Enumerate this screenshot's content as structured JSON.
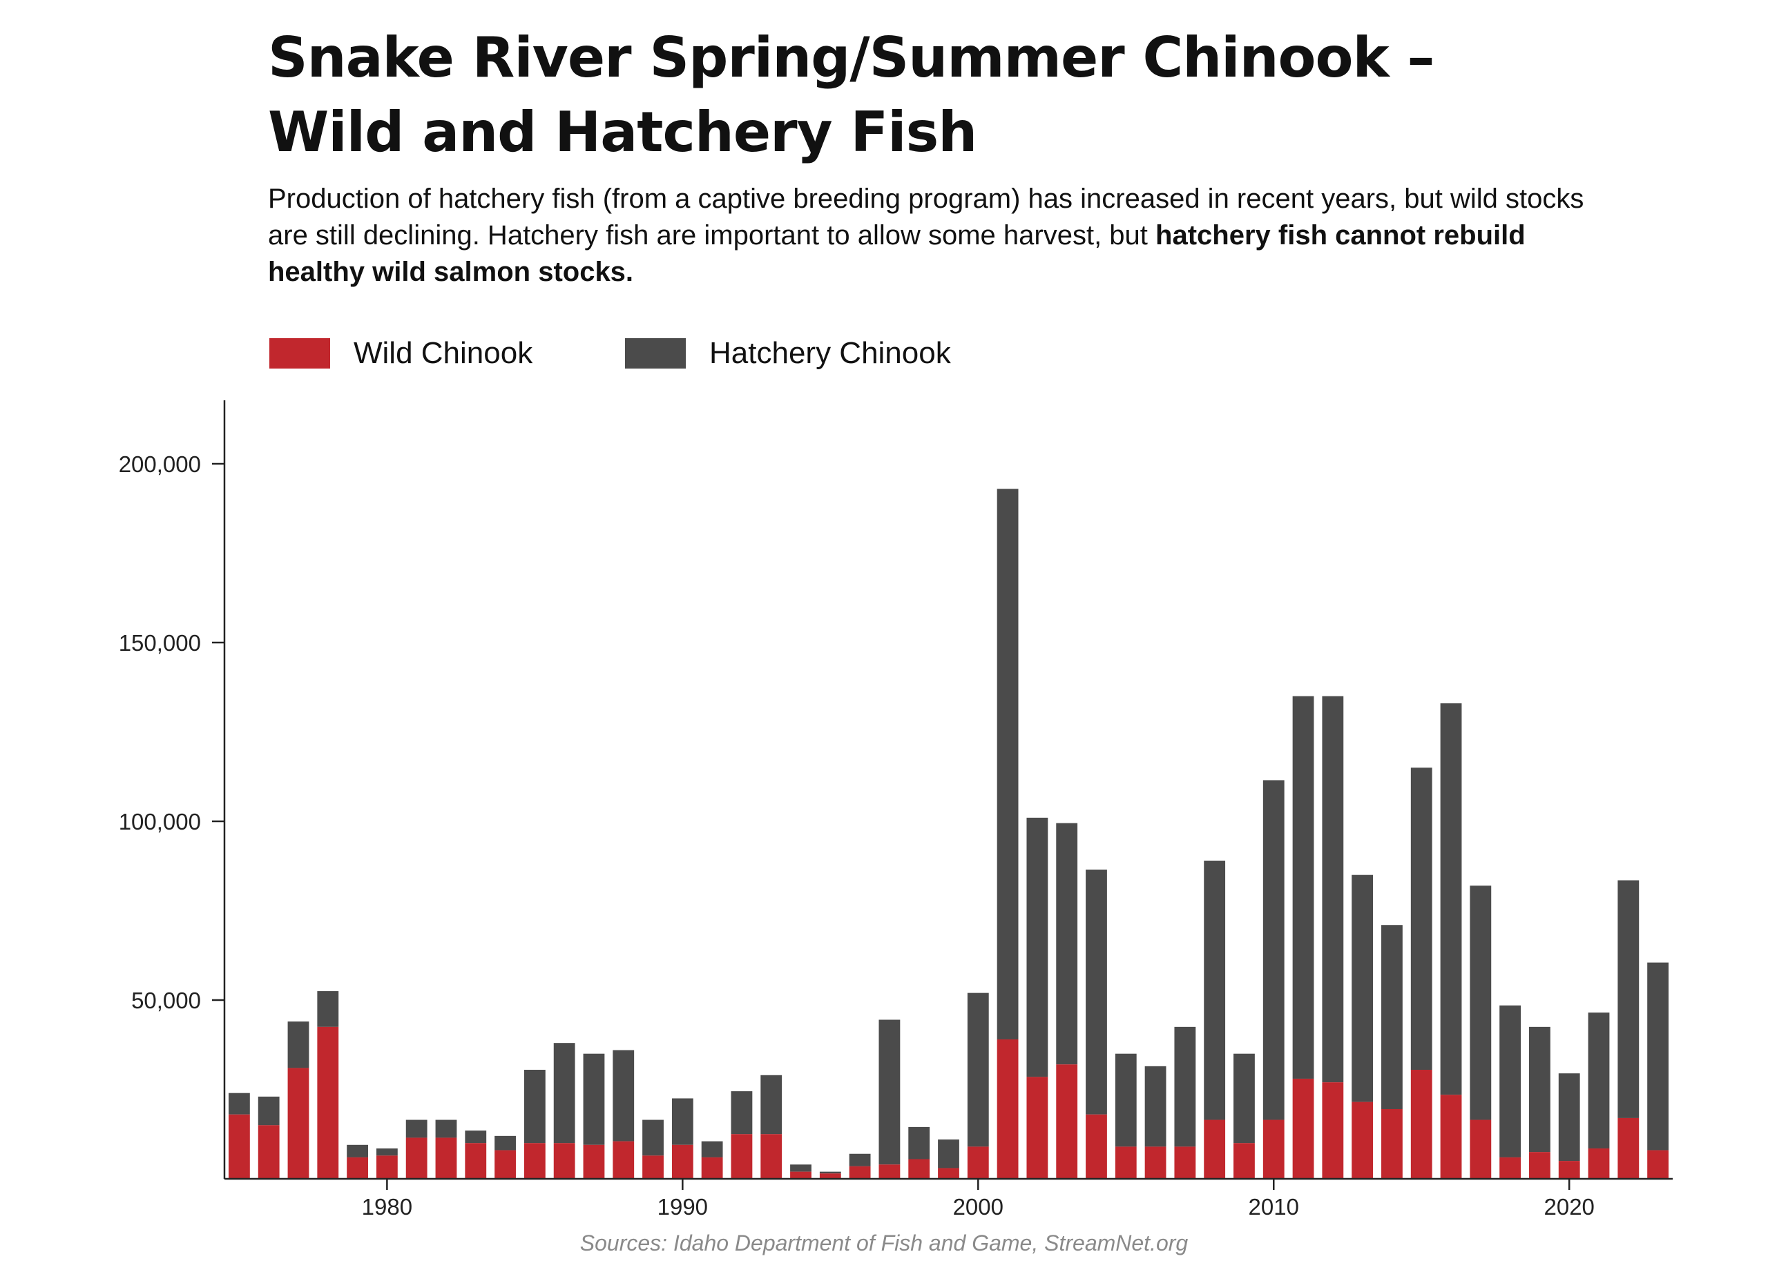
{
  "title_line1": "Snake River Spring/Summer Chinook –",
  "title_line2": "Wild and Hatchery Fish",
  "subtitle_regular": "Production of hatchery fish (from a captive breeding program) has increased in recent years, but wild stocks are still declining. Hatchery fish are important to allow some harvest, but ",
  "subtitle_bold": "hatchery fish cannot rebuild healthy wild salmon stocks.",
  "source": "Sources: Idaho Department of Fish and Game, StreamNet.org",
  "colors": {
    "wild": "#c1272d",
    "hatchery": "#4b4b4b",
    "axis": "#222222"
  },
  "chart_data": {
    "type": "bar",
    "stacked": true,
    "x": [
      1975,
      1976,
      1977,
      1978,
      1979,
      1980,
      1981,
      1982,
      1983,
      1984,
      1985,
      1986,
      1987,
      1988,
      1989,
      1990,
      1991,
      1992,
      1993,
      1994,
      1995,
      1996,
      1997,
      1998,
      1999,
      2000,
      2001,
      2002,
      2003,
      2004,
      2005,
      2006,
      2007,
      2008,
      2009,
      2010,
      2011,
      2012,
      2013,
      2014,
      2015,
      2016,
      2017,
      2018,
      2019,
      2020,
      2021,
      2022,
      2023
    ],
    "series": [
      {
        "name": "Wild Chinook",
        "color": "#c1272d",
        "values": [
          18000,
          15000,
          31000,
          42500,
          6000,
          6500,
          11500,
          11500,
          10000,
          8000,
          10000,
          10000,
          9500,
          10500,
          6500,
          9500,
          6000,
          12500,
          12500,
          2000,
          1500,
          3500,
          4000,
          5500,
          3000,
          9000,
          39000,
          28500,
          32000,
          18000,
          9000,
          9000,
          9000,
          16500,
          10000,
          16500,
          28000,
          27000,
          21500,
          19500,
          30500,
          23500,
          16500,
          6000,
          7500,
          5000,
          8500,
          17000,
          8000
        ]
      },
      {
        "name": "Hatchery Chinook",
        "color": "#4b4b4b",
        "values": [
          6000,
          8000,
          13000,
          10000,
          3500,
          2000,
          5000,
          5000,
          3500,
          4000,
          20500,
          28000,
          25500,
          25500,
          10000,
          13000,
          4500,
          12000,
          16500,
          2000,
          500,
          3500,
          40500,
          9000,
          8000,
          43000,
          154000,
          72500,
          67500,
          68500,
          26000,
          22500,
          33500,
          72500,
          25000,
          95000,
          107000,
          108000,
          63500,
          51500,
          84500,
          109500,
          65500,
          42500,
          35000,
          24500,
          38000,
          66500,
          52500
        ]
      }
    ],
    "xticks": [
      1980,
      1990,
      2000,
      2010,
      2020
    ],
    "yticks": [
      50000,
      100000,
      150000,
      200000
    ],
    "ytick_labels": [
      "50,000",
      "100,000",
      "150,000",
      "200,000"
    ],
    "xtick_labels": [
      "1980",
      "1990",
      "2000",
      "2010",
      "2020"
    ],
    "ylim": [
      0,
      218000
    ],
    "xlim": [
      1974.5,
      2023.5
    ],
    "grid": false,
    "legend_position": "top-left"
  }
}
